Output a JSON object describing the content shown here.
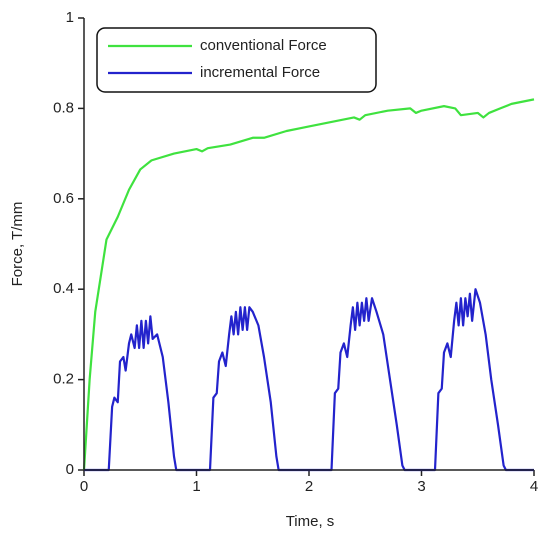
{
  "chart_data": {
    "type": "line",
    "xlabel": "Time, s",
    "ylabel": "Force, T/mm",
    "xlim": [
      0,
      4
    ],
    "xticks": [
      0,
      1,
      2,
      3,
      4
    ],
    "ylim": [
      0,
      1
    ],
    "yticks": [
      0,
      0.2,
      0.4,
      0.6,
      0.8,
      1
    ],
    "grid": false,
    "legend": "upper left",
    "series": [
      {
        "name": "conventional Force",
        "color": "#3fe23f",
        "x": [
          0,
          0.05,
          0.1,
          0.2,
          0.3,
          0.4,
          0.5,
          0.6,
          0.8,
          1.0,
          1.05,
          1.1,
          1.3,
          1.5,
          1.6,
          1.8,
          2.0,
          2.2,
          2.4,
          2.45,
          2.5,
          2.7,
          2.9,
          2.95,
          3.0,
          3.2,
          3.3,
          3.35,
          3.5,
          3.55,
          3.6,
          3.7,
          3.8,
          4.0
        ],
        "values": [
          0,
          0.2,
          0.35,
          0.51,
          0.56,
          0.62,
          0.665,
          0.685,
          0.7,
          0.71,
          0.705,
          0.712,
          0.72,
          0.735,
          0.735,
          0.75,
          0.76,
          0.77,
          0.78,
          0.775,
          0.785,
          0.795,
          0.8,
          0.79,
          0.795,
          0.805,
          0.8,
          0.785,
          0.79,
          0.78,
          0.79,
          0.8,
          0.81,
          0.82
        ]
      },
      {
        "name": "incremental Force",
        "color": "#2323cc",
        "x": [
          0,
          0.22,
          0.25,
          0.27,
          0.3,
          0.32,
          0.35,
          0.37,
          0.4,
          0.42,
          0.45,
          0.47,
          0.49,
          0.51,
          0.53,
          0.55,
          0.57,
          0.59,
          0.61,
          0.65,
          0.7,
          0.75,
          0.8,
          0.82,
          1.12,
          1.15,
          1.18,
          1.2,
          1.23,
          1.26,
          1.29,
          1.31,
          1.33,
          1.35,
          1.37,
          1.39,
          1.41,
          1.43,
          1.45,
          1.47,
          1.5,
          1.55,
          1.6,
          1.66,
          1.71,
          1.73,
          2.2,
          2.23,
          2.26,
          2.28,
          2.31,
          2.34,
          2.37,
          2.39,
          2.41,
          2.43,
          2.45,
          2.47,
          2.49,
          2.51,
          2.53,
          2.56,
          2.6,
          2.66,
          2.72,
          2.78,
          2.83,
          2.85,
          3.12,
          3.15,
          3.18,
          3.2,
          3.23,
          3.26,
          3.29,
          3.31,
          3.33,
          3.35,
          3.37,
          3.39,
          3.41,
          3.43,
          3.45,
          3.48,
          3.52,
          3.57,
          3.62,
          3.68,
          3.73,
          3.75,
          4.0
        ],
        "values": [
          0,
          0,
          0.14,
          0.16,
          0.15,
          0.24,
          0.25,
          0.22,
          0.28,
          0.3,
          0.27,
          0.32,
          0.27,
          0.33,
          0.27,
          0.33,
          0.28,
          0.34,
          0.29,
          0.3,
          0.25,
          0.15,
          0.03,
          0,
          0,
          0.16,
          0.17,
          0.24,
          0.26,
          0.23,
          0.3,
          0.34,
          0.3,
          0.35,
          0.3,
          0.36,
          0.31,
          0.36,
          0.31,
          0.36,
          0.35,
          0.32,
          0.25,
          0.15,
          0.03,
          0,
          0,
          0.17,
          0.18,
          0.26,
          0.28,
          0.25,
          0.32,
          0.36,
          0.31,
          0.37,
          0.32,
          0.37,
          0.33,
          0.38,
          0.33,
          0.38,
          0.35,
          0.3,
          0.2,
          0.1,
          0.01,
          0,
          0,
          0.17,
          0.18,
          0.26,
          0.28,
          0.25,
          0.33,
          0.37,
          0.32,
          0.38,
          0.32,
          0.38,
          0.34,
          0.39,
          0.33,
          0.4,
          0.37,
          0.3,
          0.2,
          0.1,
          0.01,
          0,
          0
        ]
      }
    ]
  }
}
